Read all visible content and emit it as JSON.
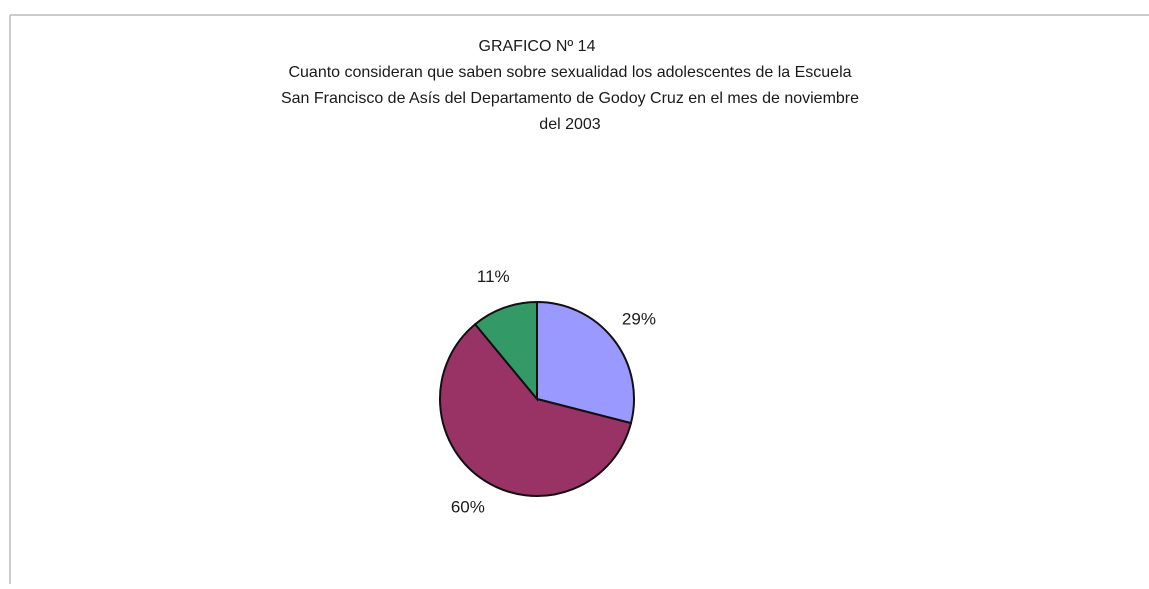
{
  "chart_data": {
    "type": "pie",
    "title": "GRAFICO Nº 14",
    "subtitle": [
      "Cuanto consideran que saben sobre sexualidad  los adolescentes de la Escuela",
      "San Francisco de Asís del Departamento de Godoy Cruz en el mes de noviembre",
      "del 2003"
    ],
    "categories": [
      null,
      null,
      null
    ],
    "values": [
      29,
      60,
      11
    ],
    "value_labels": [
      "29%",
      "60%",
      "11%"
    ],
    "colors": [
      "#9999ff",
      "#993366",
      "#339966"
    ]
  }
}
